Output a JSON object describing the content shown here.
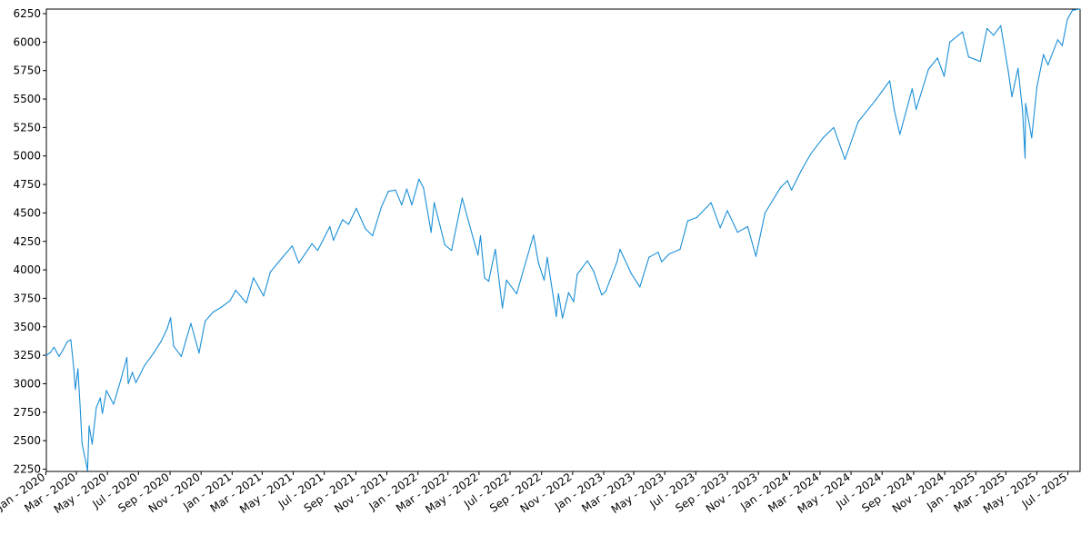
{
  "chart_data": {
    "type": "line",
    "title": "",
    "xlabel": "",
    "ylabel": "",
    "ylim": [
      2230,
      6290
    ],
    "xlim": [
      "2020-01-02",
      "2025-07-25"
    ],
    "grid": false,
    "line_color": "#1a8fd6",
    "y_ticks": [
      2250,
      2500,
      2750,
      3000,
      3250,
      3500,
      3750,
      4000,
      4250,
      4500,
      4750,
      5000,
      5250,
      5500,
      5750,
      6000,
      6250
    ],
    "x_ticks": [
      {
        "date": "2020-01-01",
        "label": "Jan - 2020"
      },
      {
        "date": "2020-03-01",
        "label": "Mar - 2020"
      },
      {
        "date": "2020-05-01",
        "label": "May - 2020"
      },
      {
        "date": "2020-07-01",
        "label": "Jul - 2020"
      },
      {
        "date": "2020-09-01",
        "label": "Sep - 2020"
      },
      {
        "date": "2020-11-01",
        "label": "Nov - 2020"
      },
      {
        "date": "2021-01-01",
        "label": "Jan - 2021"
      },
      {
        "date": "2021-03-01",
        "label": "Mar - 2021"
      },
      {
        "date": "2021-05-01",
        "label": "May - 2021"
      },
      {
        "date": "2021-07-01",
        "label": "Jul - 2021"
      },
      {
        "date": "2021-09-01",
        "label": "Sep - 2021"
      },
      {
        "date": "2021-11-01",
        "label": "Nov - 2021"
      },
      {
        "date": "2022-01-01",
        "label": "Jan - 2022"
      },
      {
        "date": "2022-03-01",
        "label": "Mar - 2022"
      },
      {
        "date": "2022-05-01",
        "label": "May - 2022"
      },
      {
        "date": "2022-07-01",
        "label": "Jul - 2022"
      },
      {
        "date": "2022-09-01",
        "label": "Sep - 2022"
      },
      {
        "date": "2022-11-01",
        "label": "Nov - 2022"
      },
      {
        "date": "2023-01-01",
        "label": "Jan - 2023"
      },
      {
        "date": "2023-03-01",
        "label": "Mar - 2023"
      },
      {
        "date": "2023-05-01",
        "label": "May - 2023"
      },
      {
        "date": "2023-07-01",
        "label": "Jul - 2023"
      },
      {
        "date": "2023-09-01",
        "label": "Sep - 2023"
      },
      {
        "date": "2023-11-01",
        "label": "Nov - 2023"
      },
      {
        "date": "2024-01-01",
        "label": "Jan - 2024"
      },
      {
        "date": "2024-03-01",
        "label": "Mar - 2024"
      },
      {
        "date": "2024-05-01",
        "label": "May - 2024"
      },
      {
        "date": "2024-07-01",
        "label": "Jul - 2024"
      },
      {
        "date": "2024-09-01",
        "label": "Sep - 2024"
      },
      {
        "date": "2024-11-01",
        "label": "Nov - 2024"
      },
      {
        "date": "2025-01-01",
        "label": "Jan - 2025"
      },
      {
        "date": "2025-03-01",
        "label": "Mar - 2025"
      },
      {
        "date": "2025-05-01",
        "label": "May - 2025"
      },
      {
        "date": "2025-07-01",
        "label": "Jul - 2025"
      }
    ],
    "series": [
      {
        "points": [
          [
            "2020-01-02",
            3250
          ],
          [
            "2020-01-10",
            3275
          ],
          [
            "2020-01-17",
            3320
          ],
          [
            "2020-01-27",
            3240
          ],
          [
            "2020-02-04",
            3300
          ],
          [
            "2020-02-12",
            3370
          ],
          [
            "2020-02-19",
            3386
          ],
          [
            "2020-02-25",
            3130
          ],
          [
            "2020-02-28",
            2950
          ],
          [
            "2020-03-04",
            3130
          ],
          [
            "2020-03-09",
            2750
          ],
          [
            "2020-03-12",
            2480
          ],
          [
            "2020-03-16",
            2390
          ],
          [
            "2020-03-20",
            2305
          ],
          [
            "2020-03-23",
            2237
          ],
          [
            "2020-03-26",
            2630
          ],
          [
            "2020-04-01",
            2470
          ],
          [
            "2020-04-09",
            2790
          ],
          [
            "2020-04-17",
            2875
          ],
          [
            "2020-04-21",
            2740
          ],
          [
            "2020-04-29",
            2940
          ],
          [
            "2020-05-13",
            2820
          ],
          [
            "2020-05-27",
            3030
          ],
          [
            "2020-06-08",
            3230
          ],
          [
            "2020-06-11",
            3000
          ],
          [
            "2020-06-19",
            3100
          ],
          [
            "2020-06-26",
            3010
          ],
          [
            "2020-07-13",
            3160
          ],
          [
            "2020-07-31",
            3270
          ],
          [
            "2020-08-14",
            3370
          ],
          [
            "2020-08-26",
            3480
          ],
          [
            "2020-09-02",
            3580
          ],
          [
            "2020-09-08",
            3330
          ],
          [
            "2020-09-23",
            3240
          ],
          [
            "2020-10-12",
            3530
          ],
          [
            "2020-10-28",
            3270
          ],
          [
            "2020-11-09",
            3550
          ],
          [
            "2020-11-25",
            3630
          ],
          [
            "2020-12-10",
            3670
          ],
          [
            "2020-12-28",
            3730
          ],
          [
            "2021-01-08",
            3820
          ],
          [
            "2021-01-29",
            3710
          ],
          [
            "2021-02-12",
            3930
          ],
          [
            "2021-03-04",
            3770
          ],
          [
            "2021-03-17",
            3980
          ],
          [
            "2021-04-08",
            4100
          ],
          [
            "2021-04-29",
            4210
          ],
          [
            "2021-05-12",
            4060
          ],
          [
            "2021-06-07",
            4230
          ],
          [
            "2021-06-18",
            4170
          ],
          [
            "2021-07-12",
            4380
          ],
          [
            "2021-07-19",
            4260
          ],
          [
            "2021-08-06",
            4440
          ],
          [
            "2021-08-18",
            4400
          ],
          [
            "2021-09-02",
            4540
          ],
          [
            "2021-09-20",
            4360
          ],
          [
            "2021-10-04",
            4300
          ],
          [
            "2021-10-21",
            4550
          ],
          [
            "2021-11-04",
            4690
          ],
          [
            "2021-11-18",
            4700
          ],
          [
            "2021-11-30",
            4570
          ],
          [
            "2021-12-10",
            4710
          ],
          [
            "2021-12-20",
            4570
          ],
          [
            "2022-01-03",
            4796
          ],
          [
            "2022-01-12",
            4720
          ],
          [
            "2022-01-27",
            4330
          ],
          [
            "2022-02-02",
            4590
          ],
          [
            "2022-02-23",
            4220
          ],
          [
            "2022-03-08",
            4170
          ],
          [
            "2022-03-29",
            4630
          ],
          [
            "2022-04-12",
            4400
          ],
          [
            "2022-04-29",
            4130
          ],
          [
            "2022-05-04",
            4300
          ],
          [
            "2022-05-12",
            3930
          ],
          [
            "2022-05-20",
            3900
          ],
          [
            "2022-06-02",
            4180
          ],
          [
            "2022-06-16",
            3666
          ],
          [
            "2022-06-24",
            3910
          ],
          [
            "2022-07-14",
            3790
          ],
          [
            "2022-08-16",
            4305
          ],
          [
            "2022-08-26",
            4060
          ],
          [
            "2022-09-06",
            3910
          ],
          [
            "2022-09-12",
            4110
          ],
          [
            "2022-09-30",
            3590
          ],
          [
            "2022-10-04",
            3790
          ],
          [
            "2022-10-12",
            3577
          ],
          [
            "2022-10-24",
            3800
          ],
          [
            "2022-11-03",
            3720
          ],
          [
            "2022-11-10",
            3960
          ],
          [
            "2022-11-30",
            4080
          ],
          [
            "2022-12-12",
            3990
          ],
          [
            "2022-12-28",
            3780
          ],
          [
            "2023-01-05",
            3810
          ],
          [
            "2023-01-27",
            4070
          ],
          [
            "2023-02-02",
            4180
          ],
          [
            "2023-02-24",
            3970
          ],
          [
            "2023-03-13",
            3850
          ],
          [
            "2023-03-31",
            4110
          ],
          [
            "2023-04-18",
            4155
          ],
          [
            "2023-04-25",
            4070
          ],
          [
            "2023-05-10",
            4140
          ],
          [
            "2023-05-31",
            4180
          ],
          [
            "2023-06-15",
            4430
          ],
          [
            "2023-07-03",
            4460
          ],
          [
            "2023-07-31",
            4590
          ],
          [
            "2023-08-18",
            4370
          ],
          [
            "2023-09-01",
            4520
          ],
          [
            "2023-09-21",
            4330
          ],
          [
            "2023-10-11",
            4380
          ],
          [
            "2023-10-27",
            4120
          ],
          [
            "2023-11-14",
            4500
          ],
          [
            "2023-12-14",
            4720
          ],
          [
            "2023-12-28",
            4783
          ],
          [
            "2024-01-05",
            4700
          ],
          [
            "2024-01-24",
            4870
          ],
          [
            "2024-02-12",
            5020
          ],
          [
            "2024-03-07",
            5160
          ],
          [
            "2024-03-28",
            5250
          ],
          [
            "2024-04-19",
            4970
          ],
          [
            "2024-05-15",
            5300
          ],
          [
            "2024-06-18",
            5490
          ],
          [
            "2024-07-16",
            5660
          ],
          [
            "2024-07-25",
            5400
          ],
          [
            "2024-08-05",
            5190
          ],
          [
            "2024-08-29",
            5590
          ],
          [
            "2024-09-06",
            5410
          ],
          [
            "2024-09-30",
            5760
          ],
          [
            "2024-10-18",
            5860
          ],
          [
            "2024-10-31",
            5700
          ],
          [
            "2024-11-11",
            6000
          ],
          [
            "2024-12-06",
            6090
          ],
          [
            "2024-12-18",
            5870
          ],
          [
            "2025-01-10",
            5830
          ],
          [
            "2025-01-23",
            6120
          ],
          [
            "2025-02-05",
            6060
          ],
          [
            "2025-02-19",
            6144
          ],
          [
            "2025-03-06",
            5740
          ],
          [
            "2025-03-13",
            5520
          ],
          [
            "2025-03-25",
            5770
          ],
          [
            "2025-04-03",
            5400
          ],
          [
            "2025-04-08",
            4982
          ],
          [
            "2025-04-09",
            5460
          ],
          [
            "2025-04-21",
            5160
          ],
          [
            "2025-05-01",
            5600
          ],
          [
            "2025-05-14",
            5890
          ],
          [
            "2025-05-23",
            5800
          ],
          [
            "2025-06-11",
            6020
          ],
          [
            "2025-06-20",
            5970
          ],
          [
            "2025-06-30",
            6200
          ],
          [
            "2025-07-10",
            6280
          ],
          [
            "2025-07-25",
            6290
          ]
        ]
      }
    ]
  }
}
